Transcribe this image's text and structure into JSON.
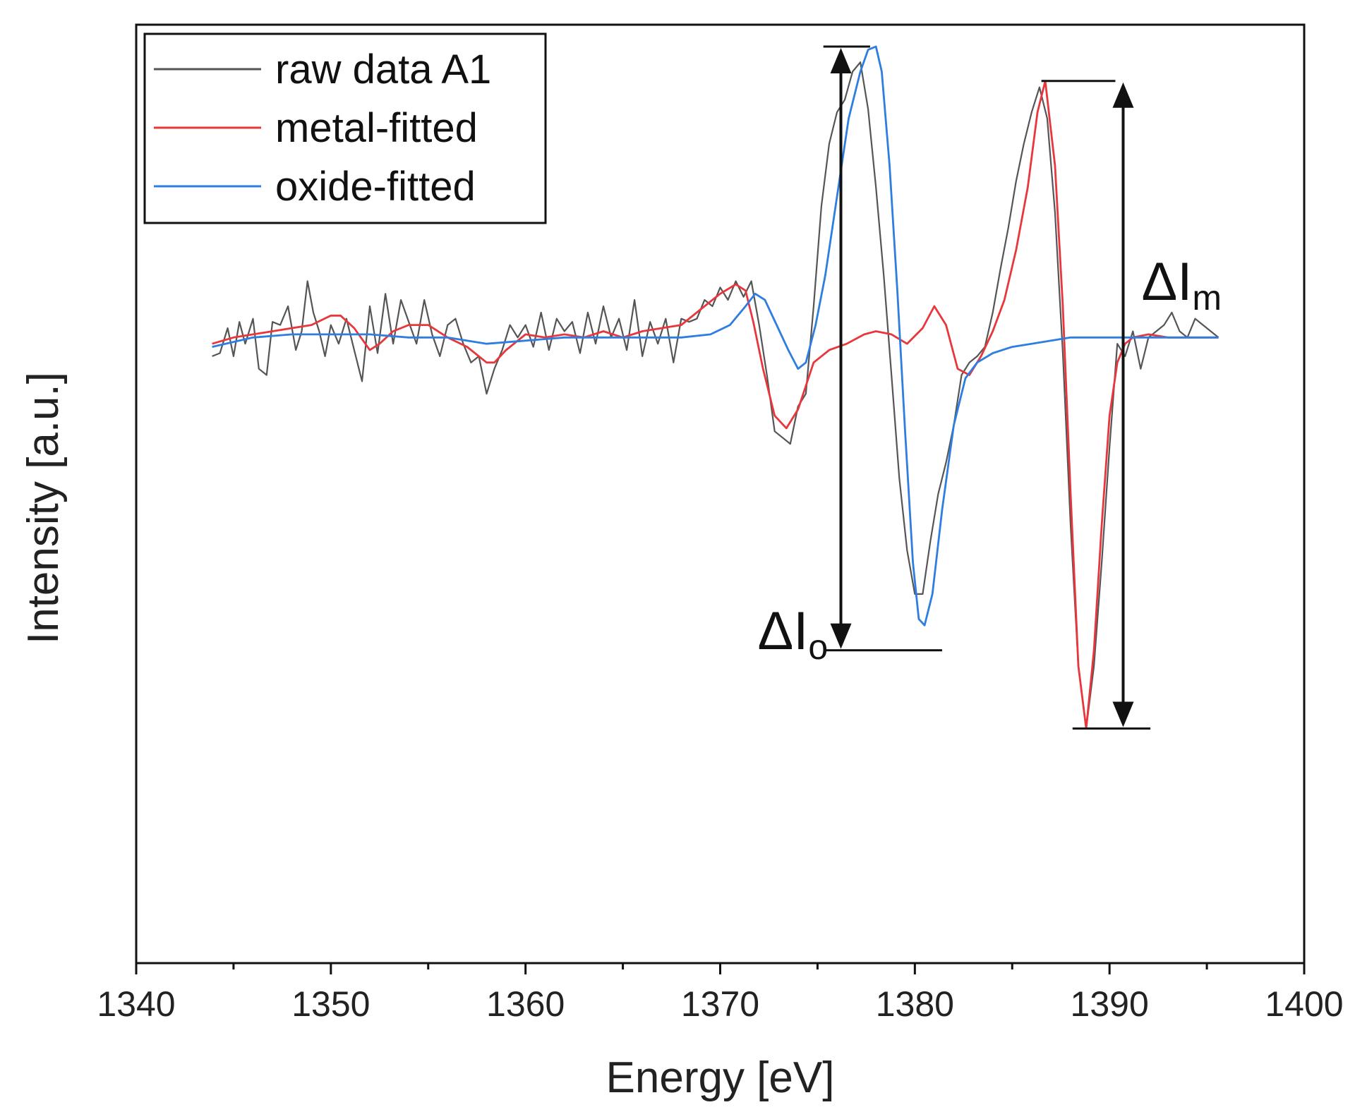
{
  "chart_data": {
    "type": "line",
    "title": "",
    "xlabel": "Energy [eV]",
    "ylabel": "Intensity [a.u.]",
    "xlim": [
      1340,
      1400
    ],
    "ylim": [
      -2.0,
      1.0
    ],
    "xticks": [
      1340,
      1350,
      1360,
      1370,
      1380,
      1390,
      1400
    ],
    "grid": false,
    "legend_position": "top-left",
    "series": [
      {
        "name": "raw data A1",
        "color": "#555555",
        "x": [
          1343.9,
          1344.3,
          1344.7,
          1345.0,
          1345.3,
          1345.6,
          1346.0,
          1346.3,
          1346.7,
          1347.0,
          1347.4,
          1347.8,
          1348.2,
          1348.5,
          1348.8,
          1349.1,
          1349.4,
          1349.7,
          1350.0,
          1350.4,
          1350.8,
          1351.2,
          1351.6,
          1352.0,
          1352.4,
          1352.8,
          1353.2,
          1353.6,
          1354.0,
          1354.4,
          1354.8,
          1355.2,
          1355.6,
          1356.0,
          1356.4,
          1356.8,
          1357.2,
          1357.6,
          1358.0,
          1358.4,
          1358.8,
          1359.2,
          1359.6,
          1360.0,
          1360.4,
          1360.8,
          1361.2,
          1361.6,
          1362.0,
          1362.4,
          1362.8,
          1363.2,
          1363.6,
          1364.0,
          1364.4,
          1364.8,
          1365.2,
          1365.6,
          1366.0,
          1366.4,
          1366.8,
          1367.2,
          1367.6,
          1368.0,
          1368.4,
          1368.8,
          1369.2,
          1369.6,
          1370.0,
          1370.4,
          1370.8,
          1371.2,
          1371.6,
          1372.0,
          1372.4,
          1372.8,
          1373.2,
          1373.6,
          1374.0,
          1374.4,
          1374.8,
          1375.2,
          1375.6,
          1376.0,
          1376.4,
          1376.8,
          1377.2,
          1377.6,
          1378.0,
          1378.4,
          1378.8,
          1379.2,
          1379.6,
          1380.0,
          1380.4,
          1380.8,
          1381.2,
          1381.6,
          1382.0,
          1382.4,
          1382.8,
          1383.2,
          1383.6,
          1384.0,
          1384.4,
          1384.8,
          1385.2,
          1385.6,
          1386.0,
          1386.4,
          1386.8,
          1387.2,
          1387.6,
          1388.0,
          1388.4,
          1388.8,
          1389.2,
          1389.6,
          1390.0,
          1390.4,
          1390.8,
          1391.2,
          1391.6,
          1392.0,
          1392.4,
          1392.8,
          1393.2,
          1393.6,
          1394.0,
          1394.4,
          1394.8,
          1395.2,
          1395.6
        ],
        "y": [
          -0.06,
          -0.05,
          0.03,
          -0.06,
          0.05,
          -0.02,
          0.06,
          -0.1,
          -0.12,
          0.05,
          0.04,
          0.1,
          -0.04,
          0.02,
          0.18,
          0.08,
          0.02,
          -0.06,
          0.04,
          -0.02,
          0.06,
          -0.04,
          -0.14,
          0.1,
          -0.05,
          0.14,
          -0.02,
          0.12,
          0.05,
          -0.02,
          0.12,
          0.01,
          -0.06,
          0.04,
          0.06,
          -0.02,
          -0.08,
          -0.06,
          -0.18,
          -0.1,
          -0.04,
          0.04,
          0.0,
          0.04,
          -0.03,
          0.08,
          -0.04,
          0.06,
          0.02,
          0.05,
          -0.05,
          0.08,
          -0.02,
          0.1,
          0.0,
          0.06,
          -0.04,
          0.12,
          -0.06,
          0.05,
          -0.02,
          0.06,
          -0.08,
          0.06,
          0.05,
          0.06,
          0.12,
          0.1,
          0.16,
          0.12,
          0.18,
          0.13,
          0.18,
          0.04,
          -0.12,
          -0.3,
          -0.32,
          -0.34,
          -0.22,
          -0.18,
          0.1,
          0.42,
          0.62,
          0.72,
          0.76,
          0.85,
          0.88,
          0.73,
          0.48,
          0.2,
          -0.12,
          -0.45,
          -0.68,
          -0.82,
          -0.82,
          -0.65,
          -0.5,
          -0.4,
          -0.28,
          -0.12,
          -0.08,
          -0.06,
          -0.03,
          0.08,
          0.22,
          0.35,
          0.5,
          0.62,
          0.72,
          0.8,
          0.7,
          0.4,
          -0.05,
          -0.6,
          -1.05,
          -1.25,
          -1.05,
          -0.72,
          -0.35,
          -0.02,
          -0.06,
          0.02,
          -0.1,
          0.0,
          0.02,
          0.04,
          0.08,
          0.02,
          0.0,
          0.06,
          0.04,
          0.02,
          0.0
        ]
      },
      {
        "name": "metal-fitted",
        "color": "#e8373c",
        "x": [
          1343.9,
          1345.0,
          1346.0,
          1347.0,
          1348.0,
          1349.0,
          1350.0,
          1350.5,
          1351.2,
          1352.0,
          1352.5,
          1353.2,
          1354.0,
          1355.0,
          1356.0,
          1357.0,
          1358.0,
          1358.4,
          1359.0,
          1360.0,
          1361.0,
          1362.0,
          1363.0,
          1364.0,
          1365.0,
          1366.0,
          1367.0,
          1368.0,
          1369.0,
          1370.0,
          1370.8,
          1371.3,
          1371.7,
          1372.2,
          1372.8,
          1373.4,
          1374.0,
          1374.8,
          1375.6,
          1376.5,
          1377.4,
          1378.0,
          1378.8,
          1379.6,
          1380.4,
          1381.0,
          1381.6,
          1382.2,
          1382.8,
          1383.4,
          1384.0,
          1384.6,
          1385.2,
          1385.8,
          1386.3,
          1386.7,
          1387.2,
          1387.6,
          1388.0,
          1388.4,
          1388.8,
          1389.2,
          1389.6,
          1390.0,
          1390.4,
          1390.8,
          1391.2,
          1392.0,
          1393.0,
          1394.0,
          1395.6
        ],
        "y": [
          -0.02,
          0.0,
          0.01,
          0.02,
          0.03,
          0.04,
          0.07,
          0.07,
          0.03,
          -0.04,
          -0.02,
          0.02,
          0.04,
          0.04,
          0.0,
          -0.03,
          -0.08,
          -0.08,
          -0.04,
          0.01,
          0.0,
          0.01,
          0.0,
          0.02,
          0.0,
          0.02,
          0.03,
          0.04,
          0.09,
          0.14,
          0.17,
          0.15,
          0.05,
          -0.1,
          -0.25,
          -0.29,
          -0.23,
          -0.08,
          -0.04,
          -0.02,
          0.01,
          0.02,
          0.01,
          -0.02,
          0.03,
          0.1,
          0.04,
          -0.1,
          -0.12,
          -0.06,
          0.02,
          0.12,
          0.28,
          0.48,
          0.72,
          0.82,
          0.55,
          0.1,
          -0.5,
          -1.05,
          -1.25,
          -1.0,
          -0.6,
          -0.25,
          -0.08,
          -0.02,
          0.0,
          0.01,
          0.0,
          0.0,
          0.0
        ]
      },
      {
        "name": "oxide-fitted",
        "color": "#2e7de0",
        "x": [
          1343.9,
          1346.0,
          1348.0,
          1350.0,
          1352.0,
          1354.0,
          1356.0,
          1358.0,
          1360.0,
          1362.0,
          1364.0,
          1366.0,
          1368.0,
          1369.5,
          1370.5,
          1371.3,
          1371.8,
          1372.3,
          1372.9,
          1373.5,
          1374.0,
          1374.4,
          1374.9,
          1375.4,
          1376.0,
          1376.6,
          1377.2,
          1377.6,
          1378.0,
          1378.3,
          1378.7,
          1379.1,
          1379.5,
          1379.9,
          1380.2,
          1380.5,
          1380.9,
          1381.4,
          1382.0,
          1382.6,
          1383.2,
          1384.0,
          1385.0,
          1386.0,
          1387.0,
          1388.0,
          1390.0,
          1392.0,
          1394.0,
          1395.6
        ],
        "y": [
          -0.03,
          0.0,
          0.01,
          0.01,
          0.01,
          0.0,
          0.0,
          -0.02,
          -0.01,
          0.0,
          0.0,
          0.0,
          0.0,
          0.01,
          0.04,
          0.1,
          0.14,
          0.12,
          0.04,
          -0.04,
          -0.1,
          -0.08,
          0.04,
          0.2,
          0.45,
          0.7,
          0.85,
          0.92,
          0.93,
          0.85,
          0.55,
          0.15,
          -0.3,
          -0.72,
          -0.9,
          -0.92,
          -0.82,
          -0.55,
          -0.28,
          -0.13,
          -0.08,
          -0.05,
          -0.03,
          -0.02,
          -0.01,
          0.0,
          0.0,
          0.0,
          0.0,
          0.0
        ]
      }
    ],
    "annotations": [
      {
        "id": "delta-io",
        "label": "ΔI",
        "sub": "o",
        "x": 1376.2,
        "y_top": 0.93,
        "y_bottom": -1.0,
        "bar_x": [
          1375.3,
          1377.7
        ],
        "bar_x_bottom": [
          1375.3,
          1381.4
        ]
      },
      {
        "id": "delta-im",
        "label": "ΔI",
        "sub": "m",
        "x": 1390.7,
        "y_top": 0.82,
        "y_bottom": -1.25,
        "bar_x": [
          1386.5,
          1390.3
        ],
        "bar_x_bottom": [
          1388.1,
          1392.1
        ]
      }
    ]
  }
}
